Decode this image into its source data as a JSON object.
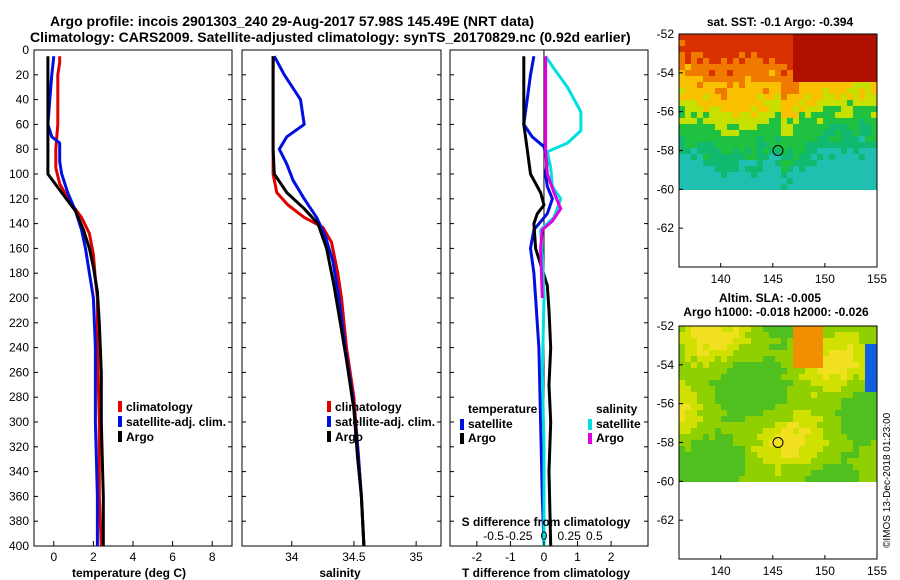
{
  "chart_data": {
    "type": "line",
    "title_line1": "Argo profile: incois 2901303_240 29-Aug-2017 57.98S 145.49E (NRT data)",
    "title_line2": "Climatology: CARS2009. Satellite-adjusted climatology: synTS_20170829.nc (0.92d earlier)",
    "depth_ticks": [
      "0",
      "20",
      "40",
      "60",
      "80",
      "100",
      "120",
      "140",
      "160",
      "180",
      "200",
      "220",
      "240",
      "260",
      "280",
      "300",
      "320",
      "340",
      "360",
      "380",
      "400"
    ],
    "panels": [
      {
        "id": "temperature",
        "xlabel": "temperature (deg C)",
        "xlim": [
          -1,
          9
        ],
        "ylim": [
          0,
          400
        ],
        "xticks": [
          {
            "v": 0,
            "t": "0"
          },
          {
            "v": 2,
            "t": "2"
          },
          {
            "v": 4,
            "t": "4"
          },
          {
            "v": 6,
            "t": "6"
          },
          {
            "v": 8,
            "t": "8"
          }
        ],
        "legend": [
          "climatology",
          "satellite-adj. clim.",
          "Argo"
        ],
        "series": [
          {
            "name": "climatology",
            "color": "#e00000",
            "points": [
              [
                0.3,
                5
              ],
              [
                0.3,
                10
              ],
              [
                0.2,
                20
              ],
              [
                0.2,
                40
              ],
              [
                0.2,
                60
              ],
              [
                0.1,
                80
              ],
              [
                0.1,
                95
              ],
              [
                0.3,
                108
              ],
              [
                0.8,
                122
              ],
              [
                1.4,
                135
              ],
              [
                1.8,
                148
              ],
              [
                2.0,
                165
              ],
              [
                2.1,
                185
              ],
              [
                2.2,
                200
              ],
              [
                2.2,
                240
              ],
              [
                2.3,
                300
              ],
              [
                2.3,
                360
              ],
              [
                2.4,
                400
              ]
            ]
          },
          {
            "name": "satellite-adj. clim.",
            "color": "#0010e0",
            "points": [
              [
                0.0,
                5
              ],
              [
                -0.1,
                20
              ],
              [
                -0.2,
                40
              ],
              [
                -0.3,
                60
              ],
              [
                -0.1,
                70
              ],
              [
                0.3,
                75
              ],
              [
                0.3,
                90
              ],
              [
                0.4,
                100
              ],
              [
                0.7,
                115
              ],
              [
                1.1,
                130
              ],
              [
                1.4,
                145
              ],
              [
                1.6,
                160
              ],
              [
                1.8,
                180
              ],
              [
                2.0,
                200
              ],
              [
                2.1,
                240
              ],
              [
                2.1,
                300
              ],
              [
                2.2,
                360
              ],
              [
                2.2,
                400
              ]
            ]
          },
          {
            "name": "Argo",
            "color": "#000000",
            "points": [
              [
                -0.3,
                5
              ],
              [
                -0.3,
                40
              ],
              [
                -0.3,
                80
              ],
              [
                -0.3,
                100
              ],
              [
                0.4,
                115
              ],
              [
                1.1,
                130
              ],
              [
                1.5,
                145
              ],
              [
                1.8,
                160
              ],
              [
                2.0,
                175
              ],
              [
                2.2,
                195
              ],
              [
                2.3,
                220
              ],
              [
                2.4,
                260
              ],
              [
                2.4,
                300
              ],
              [
                2.5,
                360
              ],
              [
                2.5,
                400
              ]
            ]
          }
        ]
      },
      {
        "id": "salinity",
        "xlabel": "salinity",
        "xlim": [
          33.6,
          35.2
        ],
        "ylim": [
          0,
          400
        ],
        "xticks": [
          {
            "v": 34,
            "t": "34"
          },
          {
            "v": 34.5,
            "t": "34.5"
          },
          {
            "v": 35,
            "t": "35"
          }
        ],
        "legend": [
          "climatology",
          "satellite-adj. clim.",
          "Argo"
        ],
        "series": [
          {
            "name": "climatology",
            "color": "#e00000",
            "points": [
              [
                33.85,
                5
              ],
              [
                33.85,
                40
              ],
              [
                33.85,
                80
              ],
              [
                33.85,
                100
              ],
              [
                33.88,
                115
              ],
              [
                33.97,
                125
              ],
              [
                34.1,
                135
              ],
              [
                34.25,
                143
              ],
              [
                34.32,
                155
              ],
              [
                34.37,
                180
              ],
              [
                34.4,
                200
              ],
              [
                34.44,
                240
              ],
              [
                34.5,
                280
              ],
              [
                34.53,
                320
              ],
              [
                34.56,
                360
              ],
              [
                34.58,
                400
              ]
            ]
          },
          {
            "name": "satellite-adj. clim.",
            "color": "#0010e0",
            "points": [
              [
                33.86,
                5
              ],
              [
                33.94,
                20
              ],
              [
                34.07,
                40
              ],
              [
                34.1,
                60
              ],
              [
                33.96,
                70
              ],
              [
                33.9,
                80
              ],
              [
                33.96,
                92
              ],
              [
                34.01,
                105
              ],
              [
                34.1,
                120
              ],
              [
                34.2,
                135
              ],
              [
                34.27,
                150
              ],
              [
                34.33,
                170
              ],
              [
                34.38,
                200
              ],
              [
                34.43,
                240
              ],
              [
                34.49,
                280
              ],
              [
                34.53,
                320
              ],
              [
                34.56,
                360
              ],
              [
                34.58,
                400
              ]
            ]
          },
          {
            "name": "Argo",
            "color": "#000000",
            "points": [
              [
                33.85,
                5
              ],
              [
                33.85,
                50
              ],
              [
                33.85,
                80
              ],
              [
                33.86,
                100
              ],
              [
                33.96,
                115
              ],
              [
                34.1,
                128
              ],
              [
                34.21,
                140
              ],
              [
                34.28,
                160
              ],
              [
                34.34,
                190
              ],
              [
                34.39,
                220
              ],
              [
                34.44,
                250
              ],
              [
                34.5,
                290
              ],
              [
                34.53,
                330
              ],
              [
                34.56,
                360
              ],
              [
                34.58,
                400
              ]
            ]
          }
        ]
      },
      {
        "id": "difference",
        "xlabel": "T difference from climatology",
        "xlabel2": "S difference from climatology",
        "xlim": [
          -2.8,
          3.1
        ],
        "ylim": [
          0,
          400
        ],
        "xticks": [
          {
            "v": -2,
            "t": "-2"
          },
          {
            "v": -1,
            "t": "-1"
          },
          {
            "v": 0,
            "t": "0"
          },
          {
            "v": 1,
            "t": "1"
          },
          {
            "v": 2,
            "t": "2"
          }
        ],
        "xticks2": [
          {
            "v": -1.5,
            "t": "-0.5"
          },
          {
            "v": -0.75,
            "t": "-0.25"
          },
          {
            "v": 0,
            "t": "0"
          },
          {
            "v": 0.75,
            "t": "0.25"
          },
          {
            "v": 1.5,
            "t": "0.5"
          }
        ],
        "legend_T_header": "temperature",
        "legend_S_header": "salinity",
        "legend_T": [
          "satellite",
          "Argo"
        ],
        "legend_S": [
          "satellite",
          "Argo"
        ],
        "series": [
          {
            "name": "T satellite",
            "color": "#0010e0",
            "points": [
              [
                -0.3,
                5
              ],
              [
                -0.4,
                20
              ],
              [
                -0.5,
                40
              ],
              [
                -0.6,
                60
              ],
              [
                -0.35,
                70
              ],
              [
                0.0,
                78
              ],
              [
                0.1,
                90
              ],
              [
                0.05,
                100
              ],
              [
                0.1,
                110
              ],
              [
                0.25,
                120
              ],
              [
                0.1,
                132
              ],
              [
                -0.3,
                145
              ],
              [
                -0.4,
                160
              ],
              [
                -0.3,
                180
              ],
              [
                -0.25,
                200
              ],
              [
                -0.15,
                240
              ],
              [
                -0.1,
                300
              ],
              [
                -0.05,
                360
              ],
              [
                0.0,
                400
              ]
            ]
          },
          {
            "name": "T Argo",
            "color": "#000000",
            "points": [
              [
                -0.6,
                5
              ],
              [
                -0.6,
                30
              ],
              [
                -0.6,
                60
              ],
              [
                -0.5,
                80
              ],
              [
                -0.4,
                100
              ],
              [
                -0.1,
                115
              ],
              [
                0.0,
                125
              ],
              [
                -0.2,
                132
              ],
              [
                -0.3,
                140
              ],
              [
                -0.25,
                160
              ],
              [
                0.1,
                190
              ],
              [
                0.15,
                210
              ],
              [
                0.2,
                240
              ],
              [
                0.15,
                270
              ],
              [
                0.2,
                300
              ],
              [
                0.15,
                340
              ],
              [
                0.2,
                400
              ]
            ]
          },
          {
            "name": "S satellite",
            "color": "#00e0e0",
            "points": [
              [
                0.05,
                5
              ],
              [
                0.3,
                15
              ],
              [
                0.7,
                30
              ],
              [
                1.1,
                50
              ],
              [
                1.1,
                65
              ],
              [
                0.7,
                75
              ],
              [
                0.1,
                82
              ],
              [
                0.2,
                95
              ],
              [
                0.25,
                110
              ],
              [
                0.5,
                120
              ],
              [
                0.3,
                135
              ],
              [
                -0.1,
                145
              ],
              [
                -0.05,
                165
              ],
              [
                0.0,
                200
              ],
              [
                -0.05,
                260
              ],
              [
                0.0,
                320
              ],
              [
                0.0,
                400
              ]
            ]
          },
          {
            "name": "S Argo",
            "color": "#e000e0",
            "points": [
              [
                0.05,
                5
              ],
              [
                0.05,
                40
              ],
              [
                0.05,
                80
              ],
              [
                0.1,
                100
              ],
              [
                0.3,
                115
              ],
              [
                0.5,
                128
              ],
              [
                0.25,
                138
              ],
              [
                -0.05,
                145
              ],
              [
                -0.1,
                160
              ],
              [
                -0.05,
                200
              ]
            ]
          }
        ]
      }
    ],
    "maps": [
      {
        "id": "sst",
        "title": "sat. SST: -0.1 Argo: -0.394",
        "yticks": [
          "-52",
          "-54",
          "-56",
          "-58",
          "-60",
          "-62"
        ],
        "xticks": [
          "140",
          "145",
          "150",
          "155"
        ],
        "lat_range": [
          -64,
          -52
        ],
        "lon_range": [
          136,
          155
        ],
        "marker_lon": 145.5,
        "marker_lat": -58
      },
      {
        "id": "sla",
        "title": "Altim. SLA: -0.005",
        "subtitle": "Argo h1000: -0.018 h2000: -0.026",
        "yticks": [
          "-52",
          "-54",
          "-56",
          "-58",
          "-60",
          "-62"
        ],
        "xticks": [
          "140",
          "145",
          "150",
          "155"
        ],
        "lat_range": [
          -64,
          -52
        ],
        "lon_range": [
          136,
          155
        ],
        "marker_lon": 145.5,
        "marker_lat": -58
      }
    ]
  },
  "credit": "©IMOS 13-Dec-2018 01:23:00",
  "colors": {
    "climatology": "#e00000",
    "satellite": "#0010e0",
    "argo": "#000000",
    "s_sat": "#00e0e0",
    "s_argo": "#e000e0"
  }
}
